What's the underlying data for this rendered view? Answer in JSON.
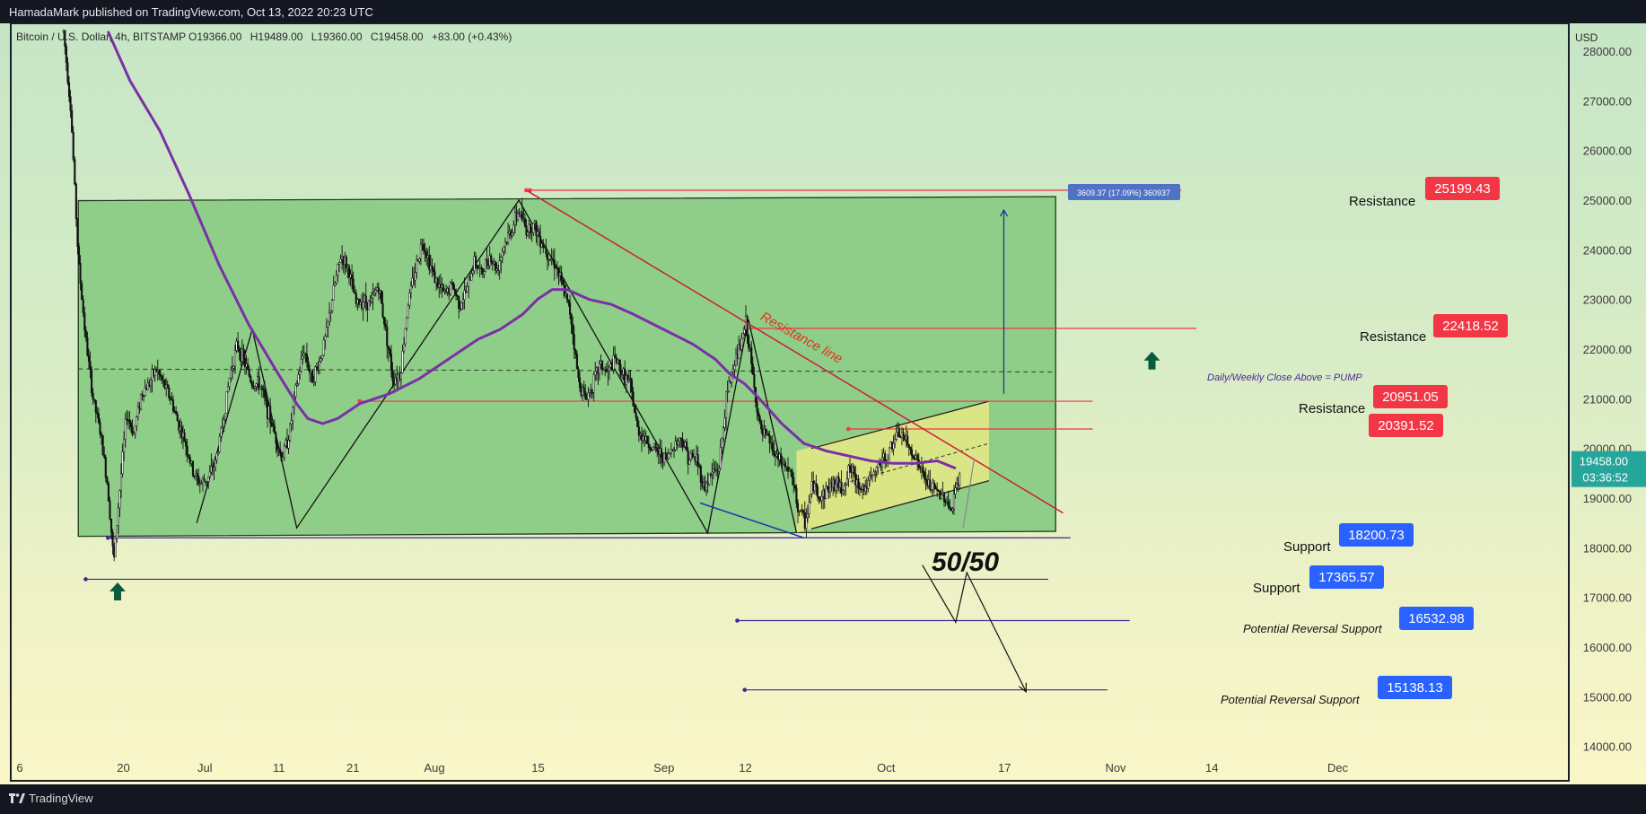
{
  "header": {
    "published": "HamadaMark published on TradingView.com, Oct 13, 2022 20:23 UTC"
  },
  "footer": {
    "logo_text": "TradingView"
  },
  "chart_data": {
    "type": "candlestick",
    "symbol_line": "Bitcoin / U.S. Dollar, 4h, BITSTAMP",
    "ohlc": {
      "open": "O19366.00",
      "high": "H19489.00",
      "low": "L19360.00",
      "close": "C19458.00",
      "change": "+83.00 (+0.43%)"
    },
    "currency": "USD",
    "ylim": [
      13600,
      28400
    ],
    "y_ticks": [
      14000,
      15000,
      16000,
      17000,
      18000,
      19000,
      20000,
      21000,
      22000,
      23000,
      24000,
      25000,
      26000,
      27000,
      28000
    ],
    "y_tick_labels": [
      "14000.00",
      "15000.00",
      "16000.00",
      "17000.00",
      "18000.00",
      "19000.00",
      "20000.00",
      "21000.00",
      "22000.00",
      "23000.00",
      "24000.00",
      "25000.00",
      "26000.00",
      "27000.00",
      "28000.00"
    ],
    "x_ticks": [
      {
        "day": 0,
        "label": "6"
      },
      {
        "day": 14,
        "label": "20"
      },
      {
        "day": 25,
        "label": "Jul"
      },
      {
        "day": 35,
        "label": "11"
      },
      {
        "day": 45,
        "label": "21"
      },
      {
        "day": 56,
        "label": "Aug"
      },
      {
        "day": 70,
        "label": "15"
      },
      {
        "day": 87,
        "label": "Sep"
      },
      {
        "day": 98,
        "label": "12"
      },
      {
        "day": 117,
        "label": "Oct"
      },
      {
        "day": 133,
        "label": "17"
      },
      {
        "day": 148,
        "label": "Nov"
      },
      {
        "day": 161,
        "label": "14"
      },
      {
        "day": 178,
        "label": "Dec"
      }
    ],
    "price_path": [
      [
        7,
        28400
      ],
      [
        8,
        26800
      ],
      [
        9,
        23800
      ],
      [
        10,
        22200
      ],
      [
        11,
        21000
      ],
      [
        12,
        20300
      ],
      [
        13,
        19200
      ],
      [
        13.8,
        17700
      ],
      [
        14.5,
        19000
      ],
      [
        15.5,
        20700
      ],
      [
        16.5,
        20300
      ],
      [
        17.5,
        21100
      ],
      [
        18.5,
        21300
      ],
      [
        19.5,
        21600
      ],
      [
        20.5,
        21300
      ],
      [
        21.5,
        21000
      ],
      [
        22.5,
        20500
      ],
      [
        23.5,
        20100
      ],
      [
        24.5,
        19500
      ],
      [
        25.5,
        19300
      ],
      [
        26.5,
        19400
      ],
      [
        27.5,
        19700
      ],
      [
        28.5,
        20500
      ],
      [
        29.5,
        21500
      ],
      [
        30.5,
        22100
      ],
      [
        31.5,
        21700
      ],
      [
        32.5,
        21300
      ],
      [
        33.5,
        21300
      ],
      [
        34.5,
        20800
      ],
      [
        35.5,
        20300
      ],
      [
        36.5,
        19800
      ],
      [
        37.5,
        20300
      ],
      [
        38.5,
        21300
      ],
      [
        39.5,
        22000
      ],
      [
        40.5,
        21400
      ],
      [
        41.5,
        21700
      ],
      [
        42.5,
        22300
      ],
      [
        43.5,
        23200
      ],
      [
        44.5,
        23900
      ],
      [
        45.5,
        23600
      ],
      [
        46.5,
        22900
      ],
      [
        47.5,
        23000
      ],
      [
        48.5,
        22900
      ],
      [
        49.5,
        23300
      ],
      [
        50.5,
        22400
      ],
      [
        51.5,
        21400
      ],
      [
        52.5,
        21500
      ],
      [
        53.5,
        22900
      ],
      [
        54.5,
        23600
      ],
      [
        55.5,
        24200
      ],
      [
        56.5,
        23700
      ],
      [
        57.5,
        23300
      ],
      [
        58.5,
        23100
      ],
      [
        59.5,
        23300
      ],
      [
        60.5,
        22900
      ],
      [
        61.5,
        23200
      ],
      [
        62.5,
        23800
      ],
      [
        63.5,
        23500
      ],
      [
        64.5,
        23900
      ],
      [
        65.5,
        23600
      ],
      [
        66.5,
        24100
      ],
      [
        67.5,
        24400
      ],
      [
        68.5,
        24800
      ],
      [
        69.5,
        24400
      ],
      [
        70.5,
        24500
      ],
      [
        71.5,
        24200
      ],
      [
        72.5,
        23900
      ],
      [
        73.5,
        23700
      ],
      [
        74.5,
        23200
      ],
      [
        75.5,
        22700
      ],
      [
        76.5,
        21400
      ],
      [
        77.5,
        21000
      ],
      [
        78.5,
        21300
      ],
      [
        79.5,
        21700
      ],
      [
        80.5,
        21500
      ],
      [
        81.5,
        21800
      ],
      [
        82.5,
        21500
      ],
      [
        83.5,
        21300
      ],
      [
        84.5,
        20400
      ],
      [
        85.5,
        20200
      ],
      [
        86.5,
        20000
      ],
      [
        87.5,
        19900
      ],
      [
        88.5,
        19800
      ],
      [
        89.5,
        20100
      ],
      [
        90.5,
        20200
      ],
      [
        91.5,
        19800
      ],
      [
        92.5,
        19800
      ],
      [
        93.5,
        19200
      ],
      [
        94.5,
        19500
      ],
      [
        95.5,
        19600
      ],
      [
        96.5,
        21000
      ],
      [
        97.5,
        21700
      ],
      [
        98.5,
        22100
      ],
      [
        99.2,
        22550
      ],
      [
        100.2,
        21300
      ],
      [
        101.2,
        20300
      ],
      [
        102.2,
        20200
      ],
      [
        103.2,
        19800
      ],
      [
        104.2,
        19700
      ],
      [
        105.2,
        19500
      ],
      [
        106.2,
        18800
      ],
      [
        107.2,
        18500
      ],
      [
        108.2,
        19300
      ],
      [
        109.2,
        19000
      ],
      [
        110.2,
        19200
      ],
      [
        111.2,
        19300
      ],
      [
        112.2,
        19200
      ],
      [
        113.2,
        19600
      ],
      [
        114.2,
        19300
      ],
      [
        115.2,
        19200
      ],
      [
        116.2,
        19400
      ],
      [
        117.2,
        19700
      ],
      [
        118.2,
        19800
      ],
      [
        119.2,
        20200
      ],
      [
        120.2,
        20300
      ],
      [
        121.2,
        20000
      ],
      [
        122.2,
        19800
      ],
      [
        123.2,
        19400
      ],
      [
        124.2,
        19200
      ],
      [
        125.2,
        19100
      ],
      [
        126.2,
        19000
      ],
      [
        127,
        18700
      ],
      [
        127.6,
        19300
      ],
      [
        128.2,
        19458
      ]
    ],
    "ma_path": [
      [
        13,
        28400
      ],
      [
        16,
        27400
      ],
      [
        20,
        26400
      ],
      [
        24,
        25100
      ],
      [
        28,
        23700
      ],
      [
        32,
        22500
      ],
      [
        36,
        21500
      ],
      [
        38.5,
        20900
      ],
      [
        40,
        20600
      ],
      [
        42,
        20500
      ],
      [
        44,
        20600
      ],
      [
        47,
        20900
      ],
      [
        51,
        21100
      ],
      [
        55,
        21400
      ],
      [
        59,
        21800
      ],
      [
        63,
        22200
      ],
      [
        66,
        22400
      ],
      [
        69,
        22700
      ],
      [
        71,
        23000
      ],
      [
        73,
        23200
      ],
      [
        75,
        23200
      ],
      [
        78,
        23000
      ],
      [
        81,
        22900
      ],
      [
        84,
        22700
      ],
      [
        88,
        22400
      ],
      [
        92,
        22100
      ],
      [
        95,
        21800
      ],
      [
        97,
        21500
      ],
      [
        99,
        21300
      ],
      [
        101,
        21000
      ],
      [
        104,
        20500
      ],
      [
        107,
        20100
      ],
      [
        110,
        19950
      ],
      [
        113,
        19850
      ],
      [
        116,
        19750
      ],
      [
        119,
        19700
      ],
      [
        122,
        19700
      ],
      [
        125,
        19750
      ],
      [
        127.5,
        19600
      ]
    ],
    "range_box": {
      "start_day": 9,
      "end_day": 141,
      "top_start": 24990,
      "top_end": 25070,
      "bottom_start": 18230,
      "bottom_end": 18330,
      "color": "#8fce88"
    },
    "yellow_channel": {
      "start_day": 106,
      "end_day": 132,
      "upper_start": 19950,
      "upper_end": 20950,
      "lower_start": 18300,
      "lower_end": 19350,
      "color": "#e8ea86"
    },
    "levels": [
      {
        "label": "Resistance",
        "price": 25199.43,
        "price_label": "25199.43",
        "kind": "resistance",
        "from_day": 70,
        "to_day": 158
      },
      {
        "label": "Resistance",
        "price": 22418.52,
        "price_label": "22418.52",
        "kind": "resistance",
        "from_day": 99,
        "to_day": 160
      },
      {
        "label": "Resistance",
        "price": 20951.05,
        "price_label": "20951.05",
        "kind": "resistance",
        "from_day": 47,
        "to_day": 146
      },
      {
        "label": "",
        "price": 20391.52,
        "price_label": "20391.52",
        "kind": "resistance",
        "from_day": 113,
        "to_day": 146
      },
      {
        "label": "Support",
        "price": 18200.73,
        "price_label": "18200.73",
        "kind": "support",
        "from_day": 13,
        "to_day": 143
      },
      {
        "label": "Support",
        "price": 17365.57,
        "price_label": "17365.57",
        "kind": "support",
        "from_day": 10,
        "to_day": 140
      },
      {
        "label": "Potential Reversal Support",
        "price": 16532.98,
        "price_label": "16532.98",
        "kind": "support",
        "from_day": 98,
        "to_day": 151
      },
      {
        "label": "Potential Reversal Support",
        "price": 15138.13,
        "price_label": "15138.13",
        "kind": "support",
        "from_day": 99,
        "to_day": 148
      }
    ],
    "current_price_label": "19458.00",
    "countdown_label": "03:36:52",
    "annotations": {
      "resistance_line_text": "Resistance line",
      "pump_text": "Daily/Weekly Close Above = PUMP",
      "fifty_text": "50/50",
      "measure_text": "3609.37 (17.09%) 360937"
    },
    "resistance_trendline": [
      [
        69.5,
        25200
      ],
      [
        142,
        18700
      ]
    ],
    "dashed_mid_line": {
      "price": 21600,
      "from_day": 9,
      "to_day": 141
    },
    "measure_arrow": {
      "day": 134,
      "from": 21100,
      "to": 24800
    },
    "zigzag": [
      [
        25,
        18500
      ],
      [
        32.5,
        22400
      ],
      [
        38.5,
        18400
      ],
      [
        68.5,
        25000
      ],
      [
        94,
        18300
      ],
      [
        99.5,
        22600
      ],
      [
        106,
        18300
      ]
    ],
    "blue_segment": [
      [
        93,
        18900
      ],
      [
        107,
        18200
      ]
    ],
    "forecast_path": [
      [
        123,
        17650
      ],
      [
        127.5,
        16500
      ],
      [
        129,
        17500
      ],
      [
        137,
        15100
      ]
    ],
    "projection_small": [
      [
        128.5,
        18400
      ],
      [
        130,
        19800
      ]
    ],
    "arrows_up": [
      {
        "day": 14.3,
        "price": 17300
      },
      {
        "day": 154,
        "price": 21950
      }
    ],
    "colors": {
      "resistance": "#f23645",
      "support": "#2962ff",
      "ma": "#7b2fa8",
      "trendline": "#c8203c",
      "arrow": "#0a5a3c",
      "current": "#26a69a"
    }
  }
}
